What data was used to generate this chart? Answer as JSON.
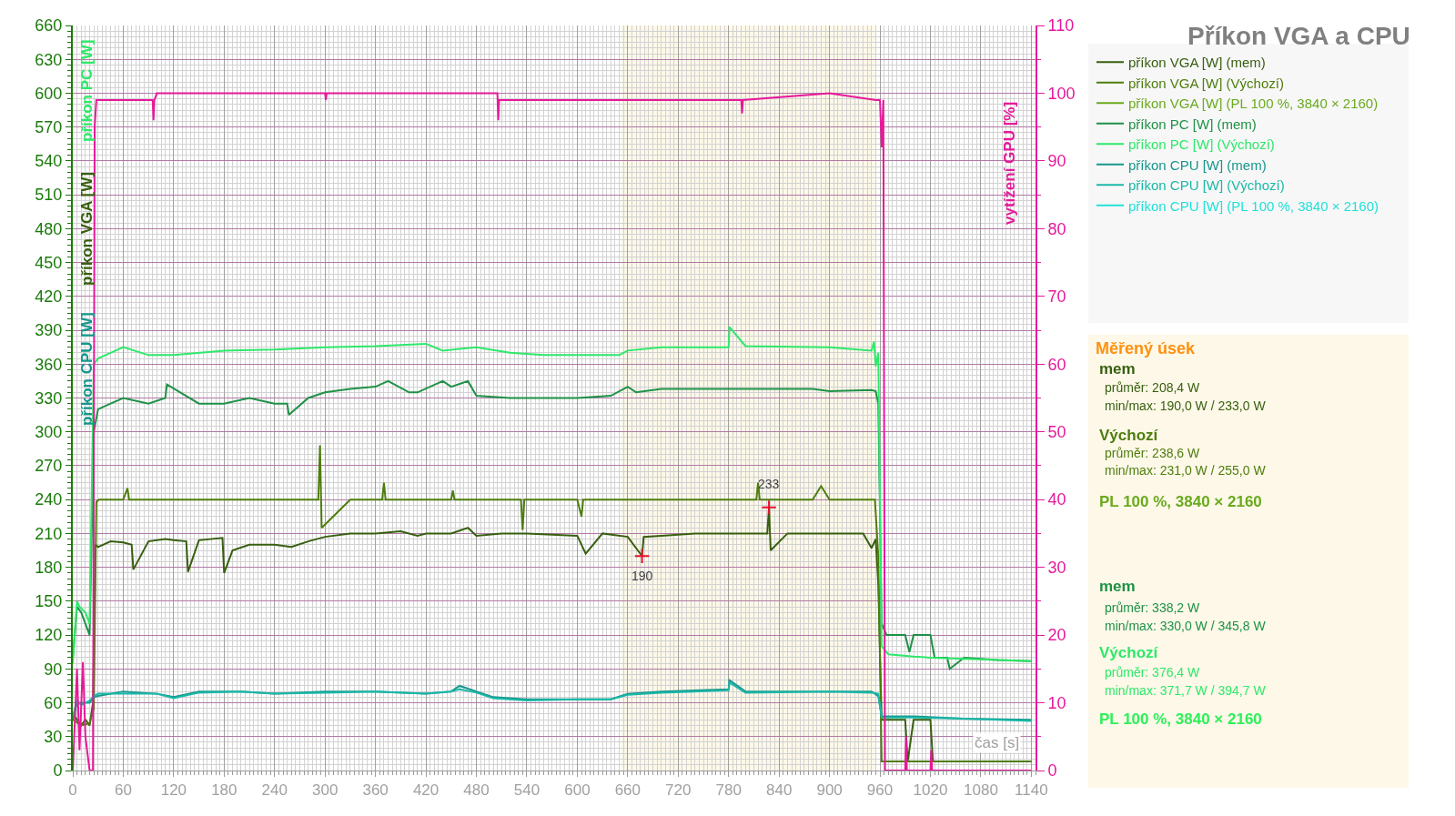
{
  "chart_data": {
    "type": "line",
    "title": "Příkon VGA a CPU",
    "xlabel": "čas [s]",
    "y2label": "vytížení GPU [%]",
    "xlim": [
      0,
      1145
    ],
    "xticks": [
      0,
      60,
      120,
      180,
      240,
      300,
      360,
      420,
      480,
      540,
      600,
      660,
      720,
      780,
      840,
      900,
      960,
      1020,
      1080,
      1140
    ],
    "ylim": [
      0,
      660
    ],
    "yticks": [
      0,
      30,
      60,
      90,
      120,
      150,
      180,
      210,
      240,
      270,
      300,
      330,
      360,
      390,
      420,
      450,
      480,
      510,
      540,
      570,
      600,
      630,
      660
    ],
    "y2lim": [
      0,
      110
    ],
    "y2ticks": [
      0,
      10,
      20,
      30,
      40,
      50,
      60,
      70,
      80,
      90,
      100,
      110
    ],
    "grid": true,
    "legend": "top right",
    "bands": [
      {
        "axis": "x",
        "from": 652,
        "to": 956,
        "color": "#fdf8e8"
      }
    ],
    "series": [
      {
        "name": "příkon VGA [W] (mem)",
        "color": "#375f0f",
        "x": [
          0,
          5,
          10,
          15,
          20,
          24,
          27,
          30,
          45,
          60,
          70,
          72,
          90,
          110,
          120,
          135,
          137,
          150,
          178,
          180,
          190,
          210,
          240,
          260,
          280,
          300,
          330,
          360,
          390,
          410,
          420,
          450,
          470,
          480,
          510,
          540,
          570,
          600,
          610,
          630,
          660,
          677,
          679,
          700,
          740,
          780,
          826,
          828,
          830,
          850,
          870,
          900,
          940,
          950,
          955,
          958,
          962,
          990,
          993,
          1000,
          1002,
          1020,
          1023,
          1060,
          1100,
          1140
        ],
        "values": [
          50,
          45,
          40,
          45,
          40,
          60,
          200,
          198,
          203,
          202,
          200,
          178,
          203,
          205,
          204,
          203,
          176,
          204,
          206,
          175,
          195,
          200,
          200,
          198,
          203,
          207,
          210,
          210,
          212,
          208,
          210,
          210,
          215,
          208,
          210,
          210,
          209,
          208,
          192,
          210,
          207,
          190,
          207,
          208,
          210,
          210,
          210,
          233,
          195,
          210,
          210,
          210,
          210,
          197,
          205,
          165,
          45,
          45,
          8,
          45,
          45,
          45,
          8,
          8,
          8,
          8
        ]
      },
      {
        "name": "příkon VGA [W] (Výchozí)",
        "color": "#4e7d0e",
        "x": [
          0,
          10,
          20,
          25,
          28,
          31,
          45,
          60,
          65,
          67,
          90,
          120,
          180,
          240,
          292,
          294,
          296,
          330,
          368,
          370,
          372,
          420,
          450,
          452,
          454,
          480,
          533,
          535,
          537,
          600,
          605,
          607,
          660,
          700,
          780,
          813,
          815,
          817,
          880,
          890,
          900,
          950,
          954,
          958,
          962,
          1000,
          1140
        ],
        "values": [
          45,
          40,
          42,
          55,
          238,
          240,
          240,
          240,
          250,
          240,
          240,
          240,
          240,
          240,
          240,
          288,
          215,
          240,
          240,
          255,
          240,
          240,
          240,
          248,
          240,
          240,
          240,
          213,
          240,
          240,
          225,
          240,
          240,
          240,
          240,
          240,
          255,
          240,
          240,
          252,
          240,
          240,
          240,
          190,
          8,
          8,
          8
        ]
      },
      {
        "name": "příkon VGA [W] (PL 100 %, 3840 × 2160)",
        "color": "#6aaa1e"
      },
      {
        "name": "příkon PC [W] (mem)",
        "color": "#1e9146",
        "x": [
          0,
          5,
          10,
          15,
          20,
          25,
          30,
          45,
          60,
          90,
          110,
          112,
          150,
          180,
          210,
          240,
          255,
          257,
          280,
          300,
          330,
          360,
          375,
          400,
          410,
          440,
          450,
          470,
          480,
          520,
          600,
          640,
          660,
          670,
          700,
          780,
          820,
          880,
          900,
          950,
          955,
          958,
          962,
          968,
          990,
          995,
          1000,
          1020,
          1025,
          1040,
          1043,
          1060,
          1100,
          1140
        ],
        "values": [
          100,
          145,
          140,
          130,
          120,
          300,
          320,
          325,
          330,
          325,
          330,
          342,
          325,
          325,
          330,
          325,
          325,
          315,
          330,
          335,
          338,
          340,
          345,
          335,
          335,
          345,
          340,
          345,
          332,
          330,
          330,
          332,
          340,
          335,
          338,
          338,
          338,
          338,
          336,
          337,
          336,
          325,
          130,
          120,
          120,
          105,
          120,
          120,
          100,
          100,
          90,
          100,
          98,
          97
        ]
      },
      {
        "name": "příkon PC [W] (Výchozí)",
        "color": "#2ee86a",
        "x": [
          0,
          5,
          8,
          15,
          20,
          25,
          30,
          45,
          60,
          90,
          120,
          180,
          240,
          300,
          360,
          420,
          440,
          480,
          520,
          560,
          600,
          650,
          660,
          700,
          780,
          781,
          800,
          900,
          950,
          953,
          955,
          958,
          962,
          970,
          1000,
          1020,
          1060,
          1100,
          1140
        ],
        "values": [
          95,
          150,
          145,
          140,
          130,
          360,
          365,
          370,
          375,
          368,
          368,
          372,
          373,
          375,
          376,
          378,
          372,
          375,
          370,
          368,
          368,
          368,
          372,
          375,
          375,
          393,
          376,
          375,
          372,
          380,
          358,
          370,
          110,
          103,
          101,
          100,
          99,
          98,
          97
        ]
      },
      {
        "name": "příkon CPU [W] (mem)",
        "color": "#17968c",
        "x": [
          0,
          5,
          10,
          20,
          25,
          30,
          60,
          100,
          120,
          150,
          200,
          240,
          300,
          360,
          420,
          450,
          460,
          480,
          500,
          540,
          600,
          640,
          660,
          700,
          780,
          781,
          800,
          900,
          950,
          958,
          962,
          1000,
          1060,
          1140
        ],
        "values": [
          45,
          60,
          60,
          60,
          65,
          66,
          70,
          68,
          65,
          70,
          70,
          68,
          70,
          70,
          68,
          70,
          75,
          70,
          65,
          63,
          63,
          63,
          68,
          70,
          72,
          80,
          70,
          70,
          70,
          66,
          48,
          48,
          46,
          45
        ]
      },
      {
        "name": "příkon CPU [W] (Výchozí)",
        "color": "#1ab8a8",
        "x": [
          0,
          5,
          10,
          20,
          25,
          30,
          60,
          100,
          120,
          150,
          200,
          240,
          300,
          360,
          420,
          450,
          460,
          480,
          500,
          540,
          600,
          640,
          660,
          700,
          780,
          781,
          800,
          900,
          950,
          958,
          962,
          1000,
          1060,
          1140
        ],
        "values": [
          48,
          62,
          58,
          62,
          66,
          68,
          68,
          68,
          64,
          69,
          70,
          68,
          69,
          70,
          68,
          70,
          72,
          69,
          64,
          62,
          63,
          63,
          67,
          69,
          71,
          78,
          69,
          70,
          69,
          68,
          47,
          47,
          46,
          44
        ]
      },
      {
        "name": "příkon CPU [W] (PL 100 %, 3840 × 2160)",
        "color": "#22e0d8"
      },
      {
        "color": "#e6199a",
        "axis": "y2",
        "x": [
          0,
          5,
          8,
          12,
          15,
          18,
          20,
          24,
          26,
          28,
          30,
          95,
          96,
          97,
          100,
          300,
          301,
          302,
          505,
          506,
          507,
          795,
          796,
          797,
          900,
          955,
          960,
          962,
          964,
          966,
          990,
          991,
          992,
          1020,
          1021,
          1022,
          1140
        ],
        "values": [
          0,
          15,
          3,
          16,
          5,
          2,
          0,
          0,
          95,
          99,
          99,
          99,
          96,
          99,
          100,
          100,
          99,
          100,
          100,
          96,
          99,
          99,
          97,
          99,
          100,
          99,
          99,
          92,
          99,
          0,
          0,
          5,
          0,
          0,
          3,
          0,
          0
        ]
      }
    ],
    "annotations": [
      "příkon PC [W]",
      "příkon VGA [W]",
      "příkon CPU [W]",
      "Měřený úsek",
      "mem",
      "průměr: 208,4 W",
      "min/max: 190,0 W / 233,0 W",
      "Výchozí",
      "průměr: 238,6 W",
      "min/max: 231,0 W / 255,0 W",
      "PL 100 %, 3840 × 2160",
      "mem",
      "průměr: 338,2 W",
      "min/max: 330,0 W / 345,8 W",
      "Výchozí",
      "průměr: 376,4 W",
      "min/max: 371,7 W / 394,7 W",
      "PL 100 %, 3840 × 2160",
      {
        "text": "233",
        "x": 828,
        "y": 233
      },
      {
        "text": "190",
        "x": 677,
        "y": 190
      }
    ]
  }
}
